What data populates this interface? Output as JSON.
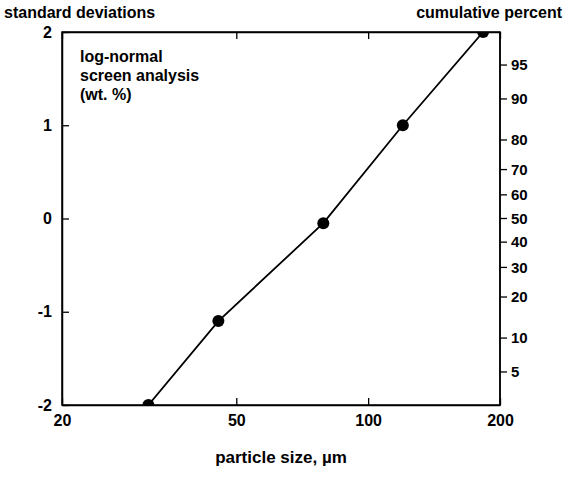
{
  "chart_data": {
    "type": "line",
    "y_label": "standard deviations",
    "y2_label": "cumulative percent",
    "x_label": "particle size, µm",
    "annotations": [
      "log-normal",
      "screen analysis",
      "(wt. %)"
    ],
    "x": [
      31.5,
      45.5,
      79,
      120,
      183
    ],
    "values": [
      -2,
      -1.1,
      -0.05,
      1.0,
      2.0
    ],
    "color": "#000000",
    "marker": "circle",
    "log": "x",
    "xlim": [
      20,
      200
    ],
    "xticks": [
      20,
      50,
      100,
      200
    ],
    "ylim": [
      -2,
      2
    ],
    "yticks": [
      -2,
      -1,
      0,
      1,
      2
    ],
    "y2lim": [
      2.28,
      97.72
    ],
    "y2ticks": [
      5,
      10,
      20,
      30,
      40,
      50,
      60,
      70,
      80,
      90,
      95
    ]
  }
}
